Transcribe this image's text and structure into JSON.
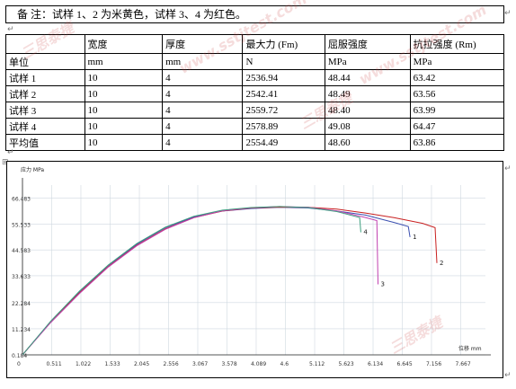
{
  "note": "备  注：试样 1、2 为米黄色，试样 3、4 为红色。",
  "table": {
    "header": [
      "",
      "宽度",
      "厚度",
      "最大力 (Fm)",
      "屈服强度",
      "抗拉强度 (Rm)"
    ],
    "rows": [
      [
        "单位",
        "mm",
        "mm",
        "N",
        "MPa",
        "MPa"
      ],
      [
        "试样 1",
        "10",
        "4",
        "2536.94",
        "48.44",
        "63.42"
      ],
      [
        "试样 2",
        "10",
        "4",
        "2542.41",
        "48.49",
        "63.56"
      ],
      [
        "试样 3",
        "10",
        "4",
        "2559.72",
        "48.40",
        "63.99"
      ],
      [
        "试样 4",
        "10",
        "4",
        "2578.89",
        "49.08",
        "64.47"
      ],
      [
        "平均值",
        "10",
        "4",
        "2554.49",
        "48.60",
        "63.86"
      ]
    ]
  },
  "watermarks": [
    "三思泰捷",
    "www.sstjtest.com",
    "三思泰捷",
    "www.sstjtest.com",
    "三思泰捷"
  ],
  "chart_data": {
    "type": "line",
    "ylabel": "应力 MPa",
    "xlabel": "位移 mm",
    "yticks": [
      "66.483",
      "55.533",
      "44.583",
      "33.633",
      "22.284",
      "11.234",
      "0.184"
    ],
    "xticks": [
      "0",
      "0.511",
      "1.022",
      "1.533",
      "2.045",
      "2.556",
      "3.067",
      "3.578",
      "4.089",
      "4.6",
      "5.112",
      "5.623",
      "6.134",
      "6.645",
      "7.156",
      "7.667"
    ],
    "xlim": [
      0,
      8.1
    ],
    "ylim": [
      0.184,
      72
    ],
    "grid": true,
    "series": [
      {
        "name": "1",
        "color": "#3a4fb0",
        "x": [
          0,
          0.5,
          1.0,
          1.5,
          2.0,
          2.5,
          3.0,
          3.5,
          4.0,
          4.5,
          5.0,
          5.5,
          6.0,
          6.5,
          6.75,
          6.78
        ],
        "y": [
          0.2,
          14.5,
          27,
          38,
          47,
          54,
          58.5,
          61,
          62.1,
          62.6,
          62.3,
          61,
          59.3,
          56.2,
          54.5,
          50
        ]
      },
      {
        "name": "2",
        "color": "#c82020",
        "x": [
          0,
          0.5,
          1.0,
          1.5,
          2.0,
          2.5,
          3.0,
          3.5,
          4.0,
          4.5,
          5.0,
          5.5,
          6.0,
          6.5,
          7.0,
          7.22,
          7.25
        ],
        "y": [
          0.2,
          14.2,
          26.5,
          37.5,
          46.5,
          53.5,
          58.2,
          61,
          62.3,
          62.7,
          62.6,
          61.8,
          60.2,
          58.2,
          55.8,
          54,
          39
        ]
      },
      {
        "name": "3",
        "color": "#c040b0",
        "x": [
          0,
          0.5,
          1.0,
          1.5,
          2.0,
          2.5,
          3.0,
          3.5,
          4.0,
          4.5,
          5.0,
          5.5,
          6.0,
          6.2,
          6.22
        ],
        "y": [
          0.2,
          14,
          26.2,
          37.3,
          46.3,
          53.3,
          58.2,
          61.1,
          62.4,
          62.9,
          62.6,
          61.1,
          58.3,
          57,
          30
        ]
      },
      {
        "name": "4",
        "color": "#40a080",
        "x": [
          0,
          0.5,
          1.0,
          1.5,
          2.0,
          2.5,
          3.0,
          3.5,
          4.0,
          4.5,
          5.0,
          5.5,
          5.9,
          5.92
        ],
        "y": [
          0.2,
          14.6,
          27.2,
          38.2,
          47.3,
          54.2,
          58.8,
          61.4,
          62.5,
          62.9,
          62.5,
          60.8,
          58.3,
          52
        ]
      }
    ]
  }
}
